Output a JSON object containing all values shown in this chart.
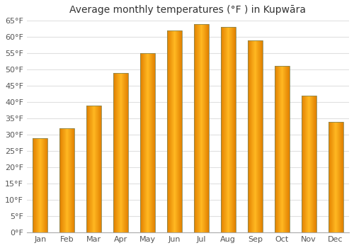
{
  "title": "Average monthly temperatures (°F ) in Kupwāra",
  "months": [
    "Jan",
    "Feb",
    "Mar",
    "Apr",
    "May",
    "Jun",
    "Jul",
    "Aug",
    "Sep",
    "Oct",
    "Nov",
    "Dec"
  ],
  "values": [
    29,
    32,
    39,
    49,
    55,
    62,
    64,
    63,
    59,
    51,
    42,
    34
  ],
  "bar_color_center": "#FFA820",
  "bar_color_edge": "#E08000",
  "bar_edge_color": "#888855",
  "ylim": [
    0,
    65
  ],
  "yticks": [
    0,
    5,
    10,
    15,
    20,
    25,
    30,
    35,
    40,
    45,
    50,
    55,
    60,
    65
  ],
  "ytick_labels": [
    "0°F",
    "5°F",
    "10°F",
    "15°F",
    "20°F",
    "25°F",
    "30°F",
    "35°F",
    "40°F",
    "45°F",
    "50°F",
    "55°F",
    "60°F",
    "65°F"
  ],
  "background_color": "#ffffff",
  "grid_color": "#e0e0e0",
  "title_fontsize": 10,
  "tick_fontsize": 8,
  "bar_width": 0.55,
  "figsize": [
    5.0,
    3.5
  ],
  "dpi": 100
}
